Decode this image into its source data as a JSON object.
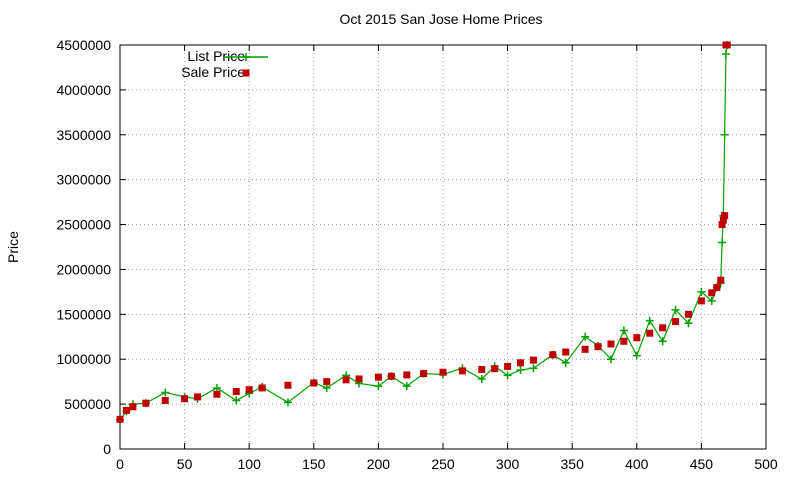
{
  "chart_data": {
    "type": "line",
    "title": "Oct 2015 San Jose Home Prices",
    "xlabel": "",
    "ylabel": "Price",
    "xlim": [
      0,
      500
    ],
    "ylim": [
      0,
      4500000
    ],
    "x_ticks": [
      "0",
      "50",
      "100",
      "150",
      "200",
      "250",
      "300",
      "350",
      "400",
      "450",
      "500"
    ],
    "y_ticks": [
      "0",
      "500000",
      "1000000",
      "1500000",
      "2000000",
      "2500000",
      "3000000",
      "3500000",
      "4000000",
      "4500000"
    ],
    "grid": true,
    "legend_position": "top-left",
    "n_points": 471,
    "series": [
      {
        "name": "List Price",
        "style": "line+plus",
        "color": "#00a000",
        "x": [
          0,
          5,
          10,
          20,
          35,
          50,
          60,
          75,
          90,
          100,
          110,
          130,
          150,
          160,
          175,
          185,
          200,
          210,
          222,
          235,
          250,
          265,
          280,
          290,
          300,
          310,
          320,
          335,
          345,
          360,
          370,
          380,
          390,
          400,
          410,
          420,
          430,
          440,
          450,
          458,
          462,
          465,
          466,
          467,
          468,
          469,
          470
        ],
        "values": [
          320000,
          420000,
          500000,
          510000,
          630000,
          580000,
          560000,
          680000,
          540000,
          620000,
          690000,
          520000,
          740000,
          680000,
          820000,
          730000,
          700000,
          810000,
          700000,
          840000,
          830000,
          900000,
          780000,
          920000,
          820000,
          880000,
          900000,
          1050000,
          960000,
          1250000,
          1150000,
          1000000,
          1320000,
          1040000,
          1430000,
          1200000,
          1550000,
          1400000,
          1750000,
          1650000,
          1800000,
          1850000,
          2300000,
          2600000,
          3500000,
          4400000,
          4500000
        ]
      },
      {
        "name": "Sale Price",
        "style": "points",
        "color": "#c00000",
        "x": [
          0,
          5,
          10,
          20,
          35,
          50,
          60,
          75,
          90,
          100,
          110,
          130,
          150,
          160,
          175,
          185,
          200,
          210,
          222,
          235,
          250,
          265,
          280,
          290,
          300,
          310,
          320,
          335,
          345,
          360,
          370,
          380,
          390,
          400,
          410,
          420,
          430,
          440,
          450,
          458,
          462,
          465,
          466,
          467,
          468,
          469,
          470
        ],
        "values": [
          330000,
          430000,
          470000,
          510000,
          540000,
          560000,
          580000,
          610000,
          640000,
          660000,
          680000,
          710000,
          735000,
          750000,
          770000,
          780000,
          800000,
          810000,
          825000,
          840000,
          855000,
          870000,
          885000,
          895000,
          920000,
          960000,
          990000,
          1050000,
          1080000,
          1110000,
          1140000,
          1170000,
          1200000,
          1240000,
          1290000,
          1350000,
          1420000,
          1500000,
          1650000,
          1740000,
          1800000,
          1880000,
          2500000,
          2550000,
          2600000,
          4500000,
          4500000
        ]
      }
    ]
  }
}
